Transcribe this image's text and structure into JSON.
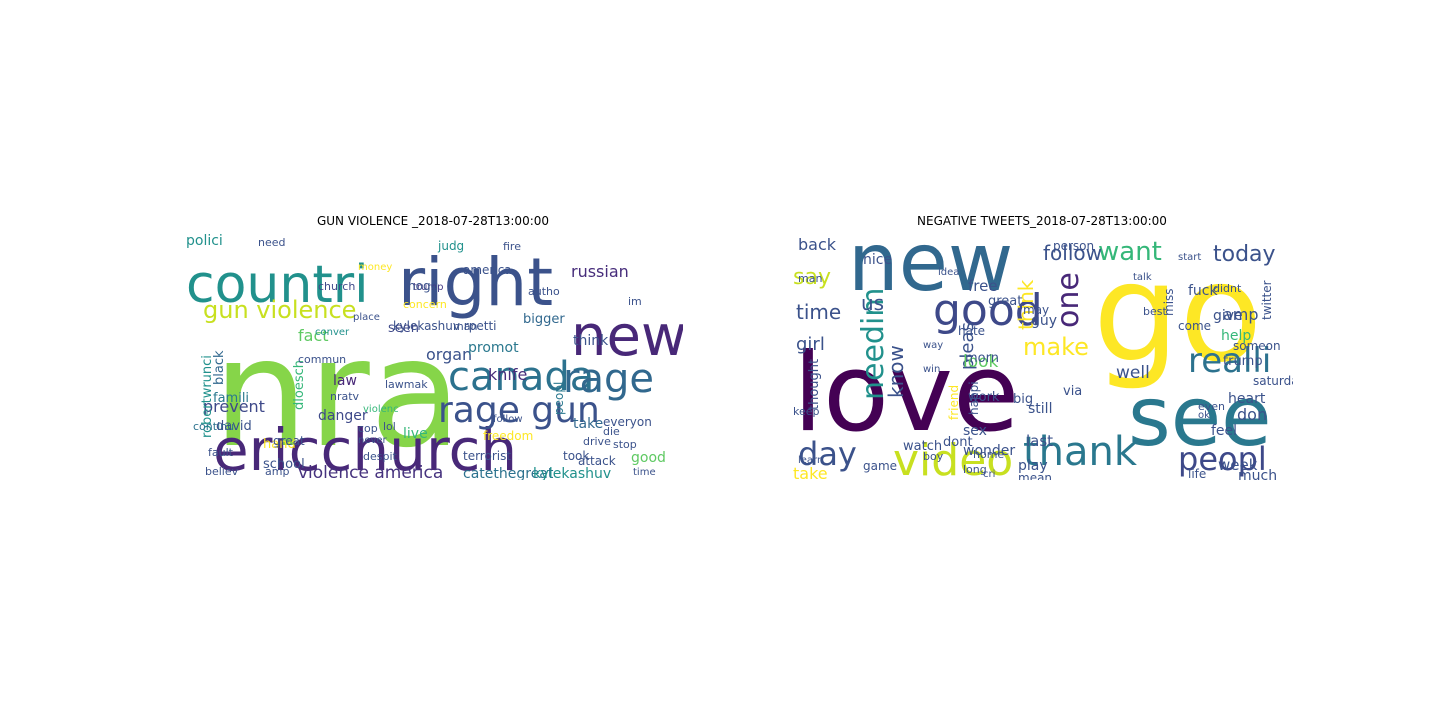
{
  "figure": {
    "panels": [
      {
        "title": "GUN VIOLENCE _2018-07-28T13:00:00",
        "words": [
          {
            "text": "nra",
            "color": "#86d549"
          },
          {
            "text": "ericchurch",
            "color": "#482878"
          },
          {
            "text": "countri",
            "color": "#21918c"
          },
          {
            "text": "right",
            "color": "#3b528b"
          },
          {
            "text": "new",
            "color": "#482878"
          },
          {
            "text": "canada",
            "color": "#2c728e"
          },
          {
            "text": "rage",
            "color": "#31688e"
          },
          {
            "text": "rage gun",
            "color": "#3b528b"
          },
          {
            "text": "gun violence",
            "color": "#c8e020"
          },
          {
            "text": "violence america",
            "color": "#46327e"
          },
          {
            "text": "catethegreat",
            "color": "#2c728e"
          },
          {
            "text": "kylekashuv",
            "color": "#21918c"
          },
          {
            "text": "prevent",
            "color": "#3e4989"
          },
          {
            "text": "danger",
            "color": "#3e4989"
          },
          {
            "text": "knife",
            "color": "#472d7b"
          },
          {
            "text": "organ",
            "color": "#3b528b"
          },
          {
            "text": "fact",
            "color": "#5ec962"
          },
          {
            "text": "polici",
            "color": "#21918c"
          },
          {
            "text": "law",
            "color": "#482878"
          },
          {
            "text": "promot",
            "color": "#2a788e"
          },
          {
            "text": "dloesch",
            "color": "#35b779"
          },
          {
            "text": "robertwrunci",
            "color": "#21918c"
          },
          {
            "text": "kylekashuv rpetti",
            "color": "#3b528b"
          },
          {
            "text": "russian",
            "color": "#472d7b"
          },
          {
            "text": "seen",
            "color": "#3e4989"
          },
          {
            "text": "think",
            "color": "#3b528b"
          },
          {
            "text": "take",
            "color": "#31688e"
          },
          {
            "text": "live",
            "color": "#35b779"
          },
          {
            "text": "school",
            "color": "#3b528b"
          },
          {
            "text": "hand",
            "color": "#fde725"
          },
          {
            "text": "good",
            "color": "#5ec962"
          },
          {
            "text": "black",
            "color": "#31688e"
          },
          {
            "text": "trump",
            "color": "#443983"
          },
          {
            "text": "church",
            "color": "#3e4989"
          },
          {
            "text": "judg",
            "color": "#21918c"
          },
          {
            "text": "fire",
            "color": "#3b528b"
          },
          {
            "text": "autho",
            "color": "#3b528b"
          },
          {
            "text": "america",
            "color": "#3b528b"
          },
          {
            "text": "bigger",
            "color": "#31688e"
          },
          {
            "text": "hogg",
            "color": "#3b528b"
          },
          {
            "text": "need",
            "color": "#3b528b"
          },
          {
            "text": "famili",
            "color": "#2a788e"
          },
          {
            "text": "continu",
            "color": "#2c728e"
          },
          {
            "text": "david",
            "color": "#3b528b"
          },
          {
            "text": "attack",
            "color": "#3b528b"
          },
          {
            "text": "everyon",
            "color": "#3b528b"
          },
          {
            "text": "great",
            "color": "#3b528b"
          },
          {
            "text": "drive",
            "color": "#3b528b"
          },
          {
            "text": "terrorist",
            "color": "#3b528b"
          },
          {
            "text": "lawmak",
            "color": "#3b528b"
          },
          {
            "text": "cop",
            "color": "#3b528b"
          },
          {
            "text": "despit",
            "color": "#3b528b"
          },
          {
            "text": "believ",
            "color": "#3b528b"
          },
          {
            "text": "time",
            "color": "#3b528b"
          },
          {
            "text": "stop",
            "color": "#3b528b"
          },
          {
            "text": "peopl",
            "color": "#2a788e"
          },
          {
            "text": "im",
            "color": "#3b528b"
          },
          {
            "text": "follow",
            "color": "#3b528b"
          },
          {
            "text": "freedom",
            "color": "#fde725"
          },
          {
            "text": "violenc",
            "color": "#35b779"
          },
          {
            "text": "commun",
            "color": "#3b528b"
          },
          {
            "text": "conver",
            "color": "#21918c"
          },
          {
            "text": "concern",
            "color": "#fde725"
          },
          {
            "text": "die",
            "color": "#3b528b"
          },
          {
            "text": "took",
            "color": "#3b528b"
          },
          {
            "text": "lol",
            "color": "#3b528b"
          },
          {
            "text": "fault",
            "color": "#3b528b"
          },
          {
            "text": "never",
            "color": "#3b528b"
          },
          {
            "text": "nratv",
            "color": "#3b528b"
          },
          {
            "text": "amp",
            "color": "#3b528b"
          },
          {
            "text": "man",
            "color": "#3b528b"
          },
          {
            "text": "place",
            "color": "#3b528b"
          },
          {
            "text": "money",
            "color": "#fde725"
          },
          {
            "text": "son",
            "color": "#3b528b"
          }
        ]
      },
      {
        "title": "NEGATIVE TWEETS_2018-07-28T13:00:00",
        "words": [
          {
            "text": "love",
            "color": "#440154"
          },
          {
            "text": "go",
            "color": "#fde725"
          },
          {
            "text": "new",
            "color": "#31688e"
          },
          {
            "text": "see",
            "color": "#2a788e"
          },
          {
            "text": "video",
            "color": "#c8e020"
          },
          {
            "text": "thank",
            "color": "#2a788e"
          },
          {
            "text": "good",
            "color": "#3e4989"
          },
          {
            "text": "realli",
            "color": "#2c728e"
          },
          {
            "text": "peopl",
            "color": "#3e4989"
          },
          {
            "text": "day",
            "color": "#3b528b"
          },
          {
            "text": "needim",
            "color": "#21918c"
          },
          {
            "text": "one",
            "color": "#482878"
          },
          {
            "text": "want",
            "color": "#35b779"
          },
          {
            "text": "make",
            "color": "#fde725"
          },
          {
            "text": "know",
            "color": "#3b528b"
          },
          {
            "text": "today",
            "color": "#3b528b"
          },
          {
            "text": "follow",
            "color": "#3b528b"
          },
          {
            "text": "say",
            "color": "#c8e020"
          },
          {
            "text": "time",
            "color": "#3b528b"
          },
          {
            "text": "us",
            "color": "#3b528b"
          },
          {
            "text": "girl",
            "color": "#3b528b"
          },
          {
            "text": "pleas",
            "color": "#3b528b"
          },
          {
            "text": "think",
            "color": "#fde725"
          },
          {
            "text": "look",
            "color": "#5ec962"
          },
          {
            "text": "back",
            "color": "#3b528b"
          },
          {
            "text": "take",
            "color": "#fde725"
          },
          {
            "text": "thought",
            "color": "#3b528b"
          },
          {
            "text": "watch",
            "color": "#3b528b"
          },
          {
            "text": "play",
            "color": "#3b528b"
          },
          {
            "text": "last",
            "color": "#3b528b"
          },
          {
            "text": "week",
            "color": "#3b528b"
          },
          {
            "text": "much",
            "color": "#3b528b"
          },
          {
            "text": "game",
            "color": "#3b528b"
          },
          {
            "text": "dont",
            "color": "#3b528b"
          },
          {
            "text": "well",
            "color": "#3b528b"
          },
          {
            "text": "amp",
            "color": "#3b528b"
          },
          {
            "text": "help",
            "color": "#35b779"
          },
          {
            "text": "give",
            "color": "#3b528b"
          },
          {
            "text": "fuck",
            "color": "#3b528b"
          },
          {
            "text": "morn",
            "color": "#3b528b"
          },
          {
            "text": "guy",
            "color": "#3b528b"
          },
          {
            "text": "still",
            "color": "#3b528b"
          },
          {
            "text": "happi",
            "color": "#3b528b"
          },
          {
            "text": "sex",
            "color": "#3b528b"
          },
          {
            "text": "free",
            "color": "#3b528b"
          },
          {
            "text": "twitter",
            "color": "#3b528b"
          },
          {
            "text": "don",
            "color": "#3b528b"
          },
          {
            "text": "feel",
            "color": "#3b528b"
          },
          {
            "text": "heart",
            "color": "#3b528b"
          },
          {
            "text": "even",
            "color": "#3b528b"
          },
          {
            "text": "miss",
            "color": "#3b528b"
          },
          {
            "text": "come",
            "color": "#3b528b"
          },
          {
            "text": "someon",
            "color": "#3b528b"
          },
          {
            "text": "trump",
            "color": "#3b528b"
          },
          {
            "text": "via",
            "color": "#3b528b"
          },
          {
            "text": "mean",
            "color": "#3b528b"
          },
          {
            "text": "work",
            "color": "#3b528b"
          },
          {
            "text": "friend",
            "color": "#fde725"
          },
          {
            "text": "hate",
            "color": "#3b528b"
          },
          {
            "text": "person",
            "color": "#3b528b"
          },
          {
            "text": "nice",
            "color": "#3b528b"
          },
          {
            "text": "man",
            "color": "#3b528b"
          },
          {
            "text": "keep",
            "color": "#3b528b"
          },
          {
            "text": "win",
            "color": "#3b528b"
          },
          {
            "text": "wonder",
            "color": "#3b528b"
          },
          {
            "text": "saturday",
            "color": "#3b528b"
          },
          {
            "text": "big",
            "color": "#3b528b"
          },
          {
            "text": "great",
            "color": "#3b528b"
          },
          {
            "text": "boy",
            "color": "#3b528b"
          },
          {
            "text": "long",
            "color": "#3b528b"
          },
          {
            "text": "learn",
            "color": "#3b528b"
          },
          {
            "text": "home",
            "color": "#3b528b"
          },
          {
            "text": "cri",
            "color": "#3b528b"
          },
          {
            "text": "didnt",
            "color": "#3b528b"
          },
          {
            "text": "may",
            "color": "#3b528b"
          },
          {
            "text": "best",
            "color": "#3b528b"
          },
          {
            "text": "start",
            "color": "#3b528b"
          },
          {
            "text": "ok",
            "color": "#3b528b"
          },
          {
            "text": "way",
            "color": "#3b528b"
          },
          {
            "text": "talk",
            "color": "#3b528b"
          },
          {
            "text": "life",
            "color": "#3b528b"
          },
          {
            "text": "idea",
            "color": "#3b528b"
          },
          {
            "text": "cant",
            "color": "#3b528b"
          }
        ]
      }
    ]
  }
}
